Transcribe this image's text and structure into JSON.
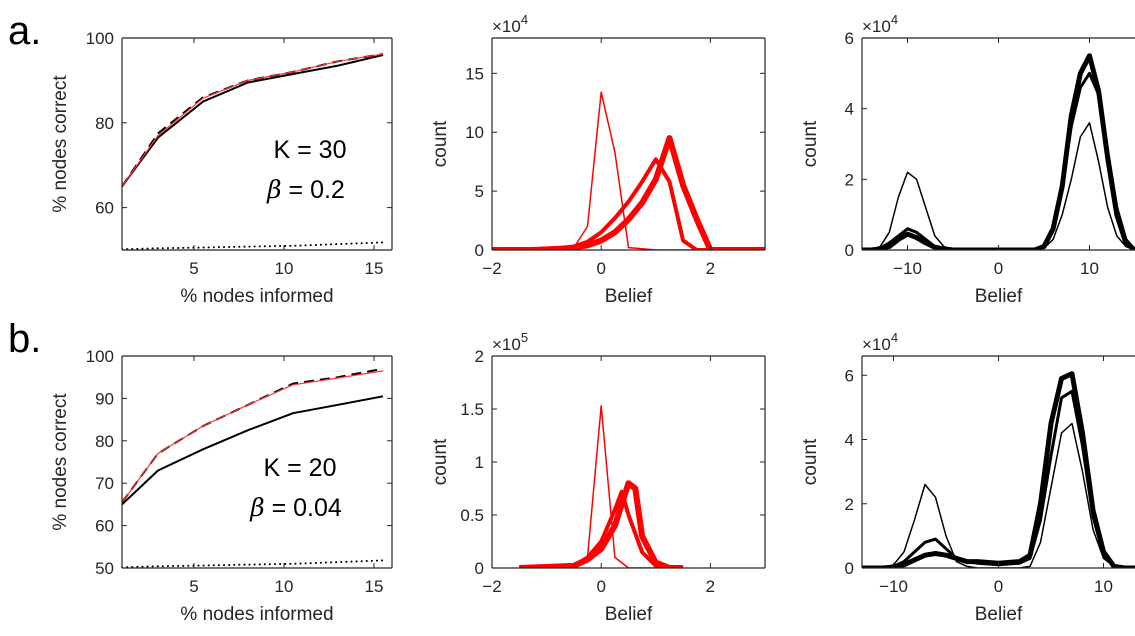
{
  "figure": {
    "row_labels": [
      "a.",
      "b."
    ]
  },
  "chart_data": [
    {
      "id": "a-left",
      "type": "line",
      "row": "a.",
      "xlabel": "% nodes informed",
      "ylabel": "% nodes correct",
      "xlim": [
        1,
        16
      ],
      "ylim": [
        50,
        100
      ],
      "xticks": [
        5,
        10,
        15
      ],
      "yticks": [
        60,
        80,
        100
      ],
      "annotations": [
        {
          "text": "K = 30"
        },
        {
          "text": " = 0.2",
          "prefix_symbol": "β"
        }
      ],
      "series": [
        {
          "style": "solid",
          "color": "#000000",
          "width": 2,
          "x": [
            1,
            3,
            5.5,
            8,
            10.5,
            13,
            15.5
          ],
          "y": [
            65,
            76.5,
            85,
            89.5,
            91.5,
            93.5,
            96
          ]
        },
        {
          "style": "dashed",
          "color": "#000000",
          "width": 2,
          "x": [
            1,
            3,
            5.5,
            8,
            10.5,
            13,
            15.5
          ],
          "y": [
            65,
            77.5,
            86,
            90,
            92,
            94.5,
            96.2
          ]
        },
        {
          "style": "solid",
          "color": "#ff3333",
          "width": 1.2,
          "x": [
            1,
            3,
            5.5,
            8,
            10.5,
            13,
            15.5
          ],
          "y": [
            65,
            77,
            85.8,
            90,
            92,
            94.5,
            96.2
          ]
        },
        {
          "style": "dotted",
          "color": "#000000",
          "width": 2,
          "x": [
            1,
            3,
            5.5,
            8,
            10.5,
            13,
            15.5
          ],
          "y": [
            50.2,
            50.4,
            50.6,
            50.8,
            51,
            51.4,
            51.8
          ]
        }
      ]
    },
    {
      "id": "a-mid",
      "type": "line",
      "row": "a.",
      "xlabel": "Belief",
      "ylabel": "count",
      "exponent": "4",
      "xlim": [
        -2,
        3
      ],
      "ylim": [
        0,
        18
      ],
      "xticks": [
        -2,
        0,
        2
      ],
      "yticks": [
        0,
        5,
        10,
        15
      ],
      "series": [
        {
          "color": "#ff0000",
          "width": 1.5,
          "x": [
            -2,
            -1,
            -0.5,
            -0.25,
            0,
            0.25,
            0.5,
            1,
            2,
            3
          ],
          "y": [
            0,
            0,
            0.2,
            2,
            13.4,
            8.3,
            0.2,
            0,
            0,
            0
          ]
        },
        {
          "color": "#ff0000",
          "width": 4,
          "x": [
            -2,
            -1.25,
            -1,
            -0.75,
            -0.5,
            -0.25,
            0,
            0.25,
            0.5,
            0.75,
            1,
            1.25,
            1.5,
            1.75,
            2,
            3
          ],
          "y": [
            0,
            0,
            0.05,
            0.1,
            0.3,
            0.7,
            1.5,
            2.7,
            4.1,
            5.8,
            7.7,
            5.8,
            0.8,
            0,
            0,
            0
          ]
        },
        {
          "color": "#ff0000",
          "width": 6,
          "x": [
            -2,
            -1.25,
            -1,
            -0.75,
            -0.5,
            -0.25,
            0,
            0.25,
            0.5,
            0.75,
            1,
            1.25,
            1.5,
            1.75,
            2,
            3
          ],
          "y": [
            0,
            0,
            0.05,
            0.1,
            0.2,
            0.4,
            0.8,
            1.5,
            2.6,
            4,
            6,
            9.5,
            5.5,
            2.6,
            0,
            0
          ]
        }
      ]
    },
    {
      "id": "a-right",
      "type": "line",
      "row": "a.",
      "xlabel": "Belief",
      "ylabel": "count",
      "exponent": "4",
      "xlim": [
        -15,
        15
      ],
      "ylim": [
        0,
        6
      ],
      "xticks": [
        -10,
        0,
        10
      ],
      "yticks": [
        0,
        2,
        4,
        6
      ],
      "series": [
        {
          "color": "#000000",
          "width": 1.5,
          "x": [
            -15,
            -14,
            -13,
            -12,
            -11,
            -10,
            -9,
            -8,
            -7,
            -6,
            -5,
            -4,
            0,
            4,
            5,
            6,
            7,
            8,
            9,
            10,
            11,
            12,
            13,
            14,
            15
          ],
          "y": [
            0,
            0,
            0.1,
            0.5,
            1.5,
            2.2,
            2,
            1.2,
            0.4,
            0.1,
            0,
            0,
            0,
            0,
            0.05,
            0.3,
            1,
            2,
            3.2,
            3.6,
            2.5,
            1.2,
            0.4,
            0.1,
            0
          ]
        },
        {
          "color": "#000000",
          "width": 3,
          "x": [
            -15,
            -14,
            -13,
            -12,
            -11,
            -10,
            -9,
            -8,
            -7,
            -6,
            -5,
            -4,
            0,
            4,
            5,
            6,
            7,
            8,
            9,
            10,
            11,
            12,
            13,
            14,
            15
          ],
          "y": [
            0,
            0,
            0.05,
            0.2,
            0.4,
            0.6,
            0.5,
            0.3,
            0.1,
            0.05,
            0,
            0,
            0,
            0,
            0.1,
            0.6,
            1.8,
            3.5,
            4.6,
            5,
            4.4,
            2.8,
            1.2,
            0.3,
            0
          ]
        },
        {
          "color": "#000000",
          "width": 5,
          "x": [
            -15,
            -14,
            -13,
            -12,
            -11,
            -10,
            -9,
            -8,
            -7,
            -6,
            -5,
            -4,
            0,
            4,
            5,
            6,
            7,
            8,
            9,
            10,
            11,
            12,
            13,
            14,
            15
          ],
          "y": [
            0,
            0,
            0.03,
            0.1,
            0.3,
            0.45,
            0.35,
            0.2,
            0.08,
            0.03,
            0,
            0,
            0,
            0,
            0.1,
            0.6,
            1.8,
            3.8,
            5,
            5.5,
            4.5,
            2.6,
            1,
            0.2,
            0
          ]
        }
      ]
    },
    {
      "id": "b-left",
      "type": "line",
      "row": "b.",
      "xlabel": "% nodes informed",
      "ylabel": "% nodes correct",
      "xlim": [
        1,
        16
      ],
      "ylim": [
        50,
        100
      ],
      "xticks": [
        5,
        10,
        15
      ],
      "yticks": [
        50,
        60,
        70,
        80,
        90,
        100
      ],
      "annotations": [
        {
          "text": "K = 20"
        },
        {
          "text": " = 0.04",
          "prefix_symbol": "β"
        }
      ],
      "series": [
        {
          "style": "solid",
          "color": "#000000",
          "width": 2,
          "x": [
            1,
            3,
            5.5,
            8,
            10.5,
            13,
            15.5
          ],
          "y": [
            65,
            73,
            78,
            82.5,
            86.5,
            88.5,
            90.5
          ]
        },
        {
          "style": "dashed",
          "color": "#000000",
          "width": 2,
          "x": [
            1,
            3,
            5.5,
            8,
            10.5,
            13,
            15.5
          ],
          "y": [
            65.5,
            77,
            83.5,
            88.5,
            93.5,
            95,
            97
          ]
        },
        {
          "style": "solid",
          "color": "#ff3333",
          "width": 1.2,
          "x": [
            1,
            3,
            5.5,
            8,
            10.5,
            13,
            15.5
          ],
          "y": [
            65.5,
            77,
            83.5,
            88.5,
            93.2,
            94.8,
            96.5
          ]
        },
        {
          "style": "dotted",
          "color": "#000000",
          "width": 2,
          "x": [
            1,
            3,
            5.5,
            8,
            10.5,
            13,
            15.5
          ],
          "y": [
            50.2,
            50.4,
            50.6,
            50.8,
            51,
            51.4,
            51.8
          ]
        }
      ]
    },
    {
      "id": "b-mid",
      "type": "line",
      "row": "b.",
      "xlabel": "Belief",
      "ylabel": "count",
      "exponent": "5",
      "xlim": [
        -2,
        3
      ],
      "ylim": [
        0,
        2
      ],
      "xticks": [
        -2,
        0,
        2
      ],
      "yticks": [
        0,
        0.5,
        1,
        1.5,
        2
      ],
      "series": [
        {
          "color": "#ff0000",
          "width": 1.5,
          "x": [
            -1.5,
            -0.5,
            -0.25,
            0,
            0.25,
            0.5,
            1.5
          ],
          "y": [
            0,
            0,
            0.1,
            1.53,
            0.1,
            0,
            0
          ]
        },
        {
          "color": "#ff0000",
          "width": 4,
          "x": [
            -1.5,
            -0.5,
            -0.25,
            0,
            0.25,
            0.375,
            0.5,
            0.75,
            1,
            1.25,
            1.5
          ],
          "y": [
            0,
            0.02,
            0.1,
            0.25,
            0.55,
            0.72,
            0.5,
            0.15,
            0.02,
            0,
            0
          ]
        },
        {
          "color": "#ff0000",
          "width": 6,
          "x": [
            -1.5,
            -0.5,
            -0.25,
            0,
            0.25,
            0.5,
            0.625,
            0.75,
            1,
            1.25,
            1.5
          ],
          "y": [
            0,
            0.02,
            0.08,
            0.18,
            0.4,
            0.8,
            0.75,
            0.3,
            0.05,
            0,
            0
          ]
        }
      ]
    },
    {
      "id": "b-right",
      "type": "line",
      "row": "b.",
      "xlabel": "Belief",
      "ylabel": "count",
      "exponent": "4",
      "xlim": [
        -13,
        13
      ],
      "ylim": [
        0,
        6.6
      ],
      "xticks": [
        -10,
        0,
        10
      ],
      "yticks": [
        0,
        2,
        4,
        6
      ],
      "series": [
        {
          "color": "#000000",
          "width": 1.5,
          "x": [
            -13,
            -11,
            -10,
            -9,
            -8,
            -7,
            -6,
            -5,
            -4,
            -3,
            -2,
            0,
            2,
            3,
            4,
            5,
            6,
            7,
            8,
            9,
            10,
            11,
            12,
            13
          ],
          "y": [
            0,
            0,
            0.1,
            0.5,
            1.5,
            2.6,
            2.2,
            1,
            0.2,
            0.05,
            0,
            0,
            0,
            0.05,
            0.8,
            2.5,
            4.2,
            4.5,
            3,
            1.2,
            0.3,
            0.05,
            0,
            0
          ]
        },
        {
          "color": "#000000",
          "width": 3,
          "x": [
            -13,
            -11,
            -10,
            -9,
            -8,
            -7,
            -6,
            -5,
            -4,
            -3,
            -2,
            0,
            2,
            3,
            4,
            5,
            6,
            7,
            8,
            9,
            10,
            11,
            12,
            13
          ],
          "y": [
            0,
            0,
            0.05,
            0.2,
            0.5,
            0.8,
            0.9,
            0.6,
            0.3,
            0.2,
            0.15,
            0.1,
            0.15,
            0.3,
            1.5,
            3.5,
            5.3,
            5.5,
            3.8,
            1.6,
            0.4,
            0.05,
            0,
            0
          ]
        },
        {
          "color": "#000000",
          "width": 5,
          "x": [
            -13,
            -11,
            -10,
            -9,
            -8,
            -7,
            -6,
            -5,
            -4,
            -3,
            -2,
            0,
            2,
            3,
            4,
            5,
            6,
            7,
            8,
            9,
            10,
            11,
            12,
            13
          ],
          "y": [
            0,
            0,
            0.03,
            0.1,
            0.25,
            0.4,
            0.45,
            0.4,
            0.3,
            0.2,
            0.2,
            0.15,
            0.2,
            0.4,
            2,
            4.5,
            5.9,
            6.05,
            4.2,
            1.8,
            0.5,
            0.05,
            0,
            0
          ]
        }
      ]
    }
  ]
}
